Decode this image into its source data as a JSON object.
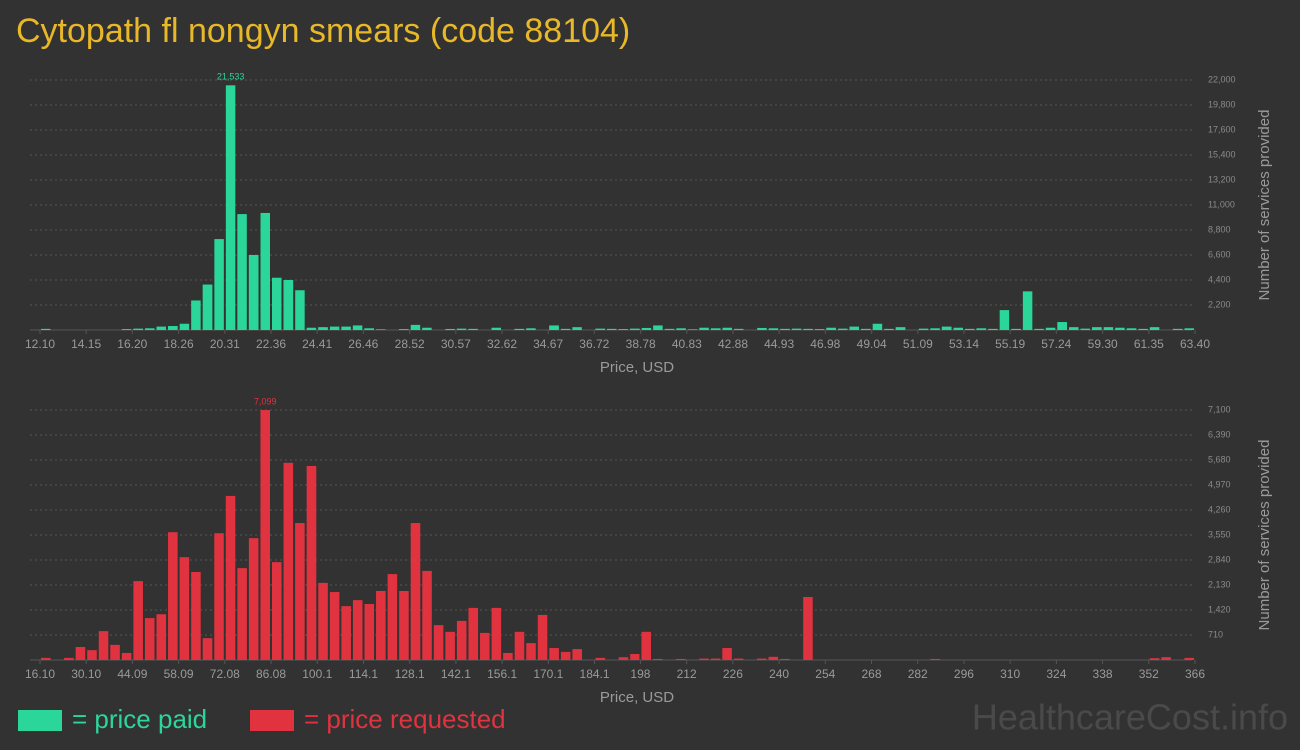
{
  "title": "Cytopath fl nongyn smears (code 88104)",
  "watermark": "HealthcareCost.info",
  "chart_data": [
    {
      "type": "histogram",
      "xlabel": "Price, USD",
      "ylabel": "Number of services provided",
      "grid": true,
      "bins": [
        12.1,
        12.61,
        13.13,
        13.64,
        14.15,
        14.67,
        15.18,
        15.69,
        16.2,
        16.72,
        17.23,
        17.74,
        18.26,
        18.77,
        19.28,
        19.8,
        20.31,
        20.82,
        21.33,
        21.85,
        22.36,
        22.87,
        23.39,
        23.9,
        24.41,
        24.93,
        25.44,
        25.95,
        26.46,
        26.98,
        27.49,
        28,
        28.52,
        29.03,
        29.54,
        30.06,
        30.57,
        31.08,
        31.59,
        32.11,
        32.62,
        33.13,
        33.65,
        34.16,
        34.67,
        35.19,
        35.7,
        36.21,
        36.72,
        37.24,
        37.75,
        38.26,
        38.78,
        39.29,
        39.8,
        40.32,
        40.83,
        41.34,
        41.85,
        42.37,
        42.88,
        43.39,
        43.91,
        44.42,
        44.93,
        45.45,
        45.96,
        46.47,
        46.98,
        47.5,
        48.01,
        48.52,
        49.04,
        49.55,
        50.06,
        50.58,
        51.09,
        51.6,
        52.11,
        52.63,
        53.14,
        53.65,
        54.17,
        54.68,
        55.19,
        55.71,
        56.22,
        56.73,
        57.24,
        57.76,
        58.27,
        58.78,
        59.3,
        59.81,
        60.32,
        60.84,
        61.35,
        61.86,
        62.37,
        62.89,
        63.4
      ],
      "xlim": [
        12.1,
        63.4
      ],
      "xticks": [
        {
          "value": 12.1,
          "label": "12.10"
        },
        14.15,
        {
          "value": 16.2,
          "label": "16.20"
        },
        18.26,
        20.31,
        22.36,
        24.41,
        26.46,
        28.52,
        30.57,
        32.62,
        34.67,
        36.72,
        38.78,
        40.83,
        42.88,
        44.93,
        46.98,
        49.04,
        51.09,
        53.14,
        55.19,
        57.24,
        {
          "value": 59.3,
          "label": "59.30"
        },
        61.35,
        {
          "value": 63.4,
          "label": "63.40"
        }
      ],
      "ylim": [
        0,
        22000
      ],
      "yticks": [
        {
          "value": 2200,
          "label": "2,200"
        },
        {
          "value": 4400,
          "label": "4,400"
        },
        {
          "value": 6600,
          "label": "6,600"
        },
        {
          "value": 8800,
          "label": "8,800"
        },
        {
          "value": 11000,
          "label": "11,000"
        },
        {
          "value": 13200,
          "label": "13,200"
        },
        {
          "value": 15400,
          "label": "15,400"
        },
        {
          "value": 17600,
          "label": "17,600"
        },
        {
          "value": 19800,
          "label": "19,800"
        },
        {
          "value": 22000,
          "label": "22,000"
        }
      ],
      "series": [
        {
          "name": "= price paid",
          "color": "#2bd69b",
          "values": [
            100,
            0,
            0,
            0,
            0,
            0,
            0,
            80,
            120,
            150,
            300,
            350,
            550,
            2600,
            4000,
            8000,
            21533,
            10200,
            6600,
            10300,
            4600,
            4400,
            3500,
            200,
            250,
            300,
            300,
            400,
            150,
            60,
            0,
            80,
            450,
            200,
            0,
            90,
            120,
            100,
            0,
            200,
            0,
            100,
            150,
            0,
            400,
            100,
            250,
            0,
            120,
            100,
            80,
            120,
            180,
            400,
            100,
            150,
            60,
            200,
            150,
            200,
            100,
            0,
            180,
            150,
            100,
            120,
            100,
            80,
            200,
            120,
            300,
            100,
            550,
            100,
            250,
            0,
            120,
            150,
            300,
            200,
            100,
            150,
            100,
            1750,
            100,
            3400,
            100,
            200,
            700,
            250,
            120,
            250,
            250,
            200,
            150,
            100,
            250,
            0,
            100,
            150
          ],
          "value_labels": [
            null,
            null,
            null,
            null,
            null,
            null,
            null,
            null,
            null,
            null,
            null,
            null,
            null,
            null,
            null,
            null,
            "21,533",
            null,
            null,
            null,
            null,
            null,
            null,
            null,
            null,
            null,
            null,
            null,
            null,
            null,
            null,
            null,
            null,
            null,
            null,
            null,
            null,
            null,
            null,
            null,
            null,
            null,
            null,
            null,
            null,
            null,
            null,
            null,
            null,
            null,
            null,
            null,
            null,
            null,
            null,
            null,
            null,
            null,
            null,
            null,
            null,
            null,
            null,
            null,
            null,
            null,
            null,
            null,
            null,
            null,
            null,
            null,
            null,
            null,
            null,
            null,
            null,
            null,
            null,
            null,
            null,
            null,
            null,
            null,
            null,
            null,
            null,
            null,
            null,
            null,
            null,
            null,
            null,
            null,
            null,
            null,
            null,
            null,
            null,
            null
          ]
        }
      ]
    },
    {
      "type": "histogram",
      "xlabel": "Price, USD",
      "ylabel": "Number of services provided",
      "grid": true,
      "bins": [
        16.1,
        19.6,
        23.1,
        26.6,
        30.1,
        33.6,
        37.09,
        40.59,
        44.09,
        47.59,
        51.09,
        54.59,
        58.09,
        61.59,
        65.09,
        68.59,
        72.08,
        75.58,
        79.08,
        82.58,
        86.08,
        89.58,
        93.08,
        96.58,
        100.1,
        103.6,
        107.1,
        110.6,
        114.1,
        117.6,
        121.1,
        124.6,
        128.1,
        131.6,
        135.1,
        138.6,
        142.1,
        145.6,
        149.1,
        152.6,
        156.1,
        159.6,
        163.1,
        166.6,
        170.1,
        173.6,
        177.1,
        180.6,
        184.1,
        187.6,
        191.1,
        194.6,
        198,
        201.5,
        205,
        208.5,
        212,
        215.5,
        219,
        222.5,
        226,
        229.5,
        233,
        236.5,
        240,
        243.5,
        247,
        250.5,
        254,
        257.5,
        261,
        264.5,
        268,
        271.5,
        275,
        278.5,
        282,
        285.5,
        289,
        292.5,
        296,
        299.5,
        303,
        306.5,
        310,
        313.5,
        317,
        320.5,
        324,
        327.5,
        331,
        334.5,
        338,
        341.5,
        345,
        348.5,
        352,
        355.5,
        359,
        362.5,
        366
      ],
      "xlim": [
        16.1,
        366
      ],
      "xticks": [
        {
          "value": 16.1,
          "label": "16.10"
        },
        {
          "value": 30.1,
          "label": "30.10"
        },
        44.09,
        58.09,
        72.08,
        86.08,
        100.1,
        114.1,
        128.1,
        142.1,
        156.1,
        170.1,
        184.1,
        198,
        212,
        226,
        240,
        254,
        268,
        282,
        296,
        310,
        324,
        338,
        352,
        366
      ],
      "ylim": [
        0,
        7100
      ],
      "yticks": [
        710,
        {
          "value": 1420,
          "label": "1,420"
        },
        {
          "value": 2130,
          "label": "2,130"
        },
        {
          "value": 2840,
          "label": "2,840"
        },
        {
          "value": 3550,
          "label": "3,550"
        },
        {
          "value": 4260,
          "label": "4,260"
        },
        {
          "value": 4970,
          "label": "4,970"
        },
        {
          "value": 5680,
          "label": "5,680"
        },
        {
          "value": 6390,
          "label": "6,390"
        },
        {
          "value": 7100,
          "label": "7,100"
        }
      ],
      "series": [
        {
          "name": "= price requested",
          "color": "#e0323f",
          "values": [
            60,
            0,
            60,
            370,
            280,
            820,
            430,
            200,
            2240,
            1190,
            1300,
            3630,
            2920,
            2500,
            620,
            3600,
            4660,
            2610,
            3460,
            7099,
            2780,
            5600,
            3890,
            5510,
            2190,
            1930,
            1530,
            1700,
            1590,
            1960,
            2440,
            1960,
            3890,
            2530,
            990,
            800,
            1110,
            1480,
            770,
            1480,
            200,
            800,
            480,
            1280,
            340,
            230,
            310,
            0,
            60,
            0,
            80,
            170,
            800,
            30,
            0,
            30,
            0,
            40,
            40,
            340,
            40,
            0,
            40,
            90,
            30,
            0,
            1790,
            0,
            0,
            0,
            0,
            0,
            0,
            0,
            0,
            0,
            0,
            30,
            0,
            0,
            0,
            0,
            0,
            0,
            0,
            0,
            0,
            0,
            0,
            0,
            0,
            0,
            0,
            0,
            0,
            0,
            50,
            80,
            0,
            60
          ],
          "value_labels": [
            null,
            null,
            null,
            null,
            null,
            null,
            null,
            null,
            null,
            null,
            null,
            null,
            null,
            null,
            null,
            null,
            null,
            null,
            null,
            "7,099",
            null,
            null,
            null,
            null,
            null,
            null,
            null,
            null,
            null,
            null,
            null,
            null,
            null,
            null,
            null,
            null,
            null,
            null,
            null,
            null,
            null,
            null,
            null,
            null,
            null,
            null,
            null,
            null,
            null,
            null,
            null,
            null,
            null,
            null,
            null,
            null,
            null,
            null,
            null,
            null,
            null,
            null,
            null,
            null,
            null,
            null,
            null,
            null,
            null,
            null,
            null,
            null,
            null,
            null,
            null,
            null,
            null,
            null,
            null,
            null,
            null,
            null,
            null,
            null,
            null,
            null,
            null,
            null,
            null,
            null,
            null,
            null,
            null,
            null,
            null,
            null,
            null,
            null,
            null,
            null
          ]
        }
      ]
    }
  ]
}
